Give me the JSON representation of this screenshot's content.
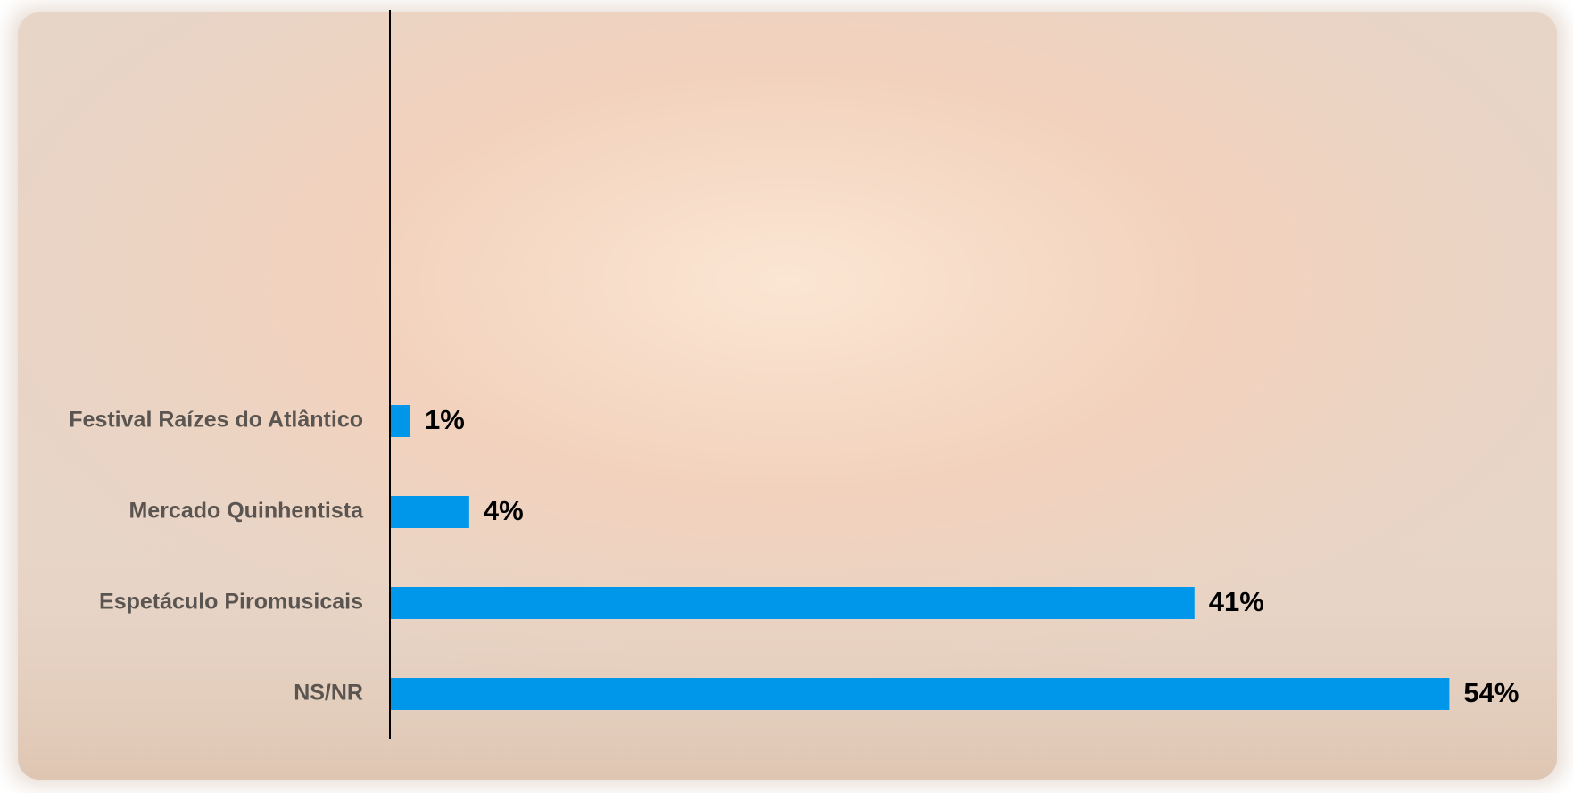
{
  "chart_data": {
    "type": "hbar",
    "categories": [
      "Festival Raízes do Atlântico",
      "Mercado Quinhentista",
      "Espetáculo Piromusicais",
      "NS/NR"
    ],
    "values": [
      1,
      4,
      41,
      54
    ],
    "value_labels": [
      "1%",
      "4%",
      "41%",
      "54%"
    ],
    "color": "#0096e9"
  }
}
